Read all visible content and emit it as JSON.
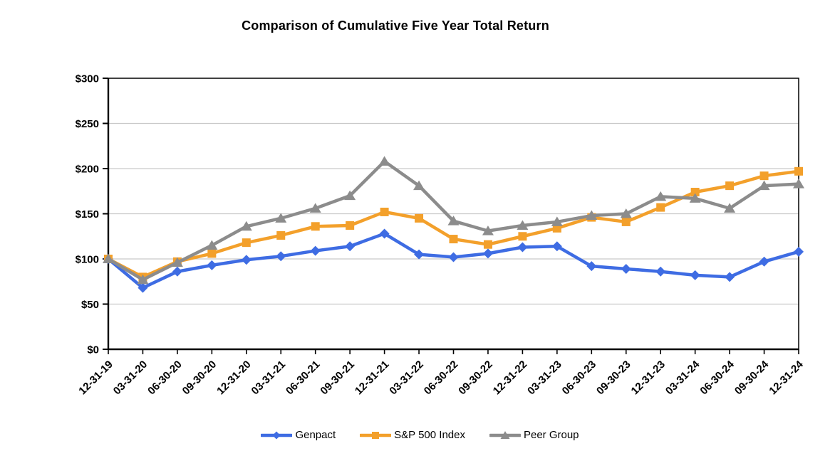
{
  "title": "Comparison of Cumulative Five Year Total Return",
  "chart_data": {
    "type": "line",
    "title": "Comparison of Cumulative Five Year Total Return",
    "x_labels": [
      "12-31-19",
      "03-31-20",
      "06-30-20",
      "09-30-20",
      "12-31-20",
      "03-31-21",
      "06-30-21",
      "09-30-21",
      "12-31-21",
      "03-31-22",
      "06-30-22",
      "09-30-22",
      "12-31-22",
      "03-31-23",
      "06-30-23",
      "09-30-23",
      "12-31-23",
      "03-31-24",
      "06-30-24",
      "09-30-24",
      "12-31-24"
    ],
    "series": [
      {
        "name": "Genpact",
        "color": "#3E6CE3",
        "marker": "diamond",
        "values": [
          100,
          68,
          86,
          93,
          99,
          103,
          109,
          114,
          128,
          105,
          102,
          106,
          113,
          114,
          92,
          89,
          86,
          82,
          80,
          97,
          108
        ]
      },
      {
        "name": "S&P 500 Index",
        "color": "#F3A02B",
        "marker": "square",
        "values": [
          100,
          80,
          97,
          106,
          118,
          126,
          136,
          137,
          152,
          145,
          122,
          116,
          125,
          134,
          146,
          141,
          157,
          174,
          181,
          192,
          197
        ]
      },
      {
        "name": "Peer Group",
        "color": "#8C8C8C",
        "marker": "triangle",
        "values": [
          100,
          77,
          96,
          115,
          136,
          145,
          156,
          170,
          208,
          181,
          142,
          131,
          137,
          141,
          148,
          150,
          169,
          167,
          156,
          181,
          183
        ]
      }
    ],
    "y_axis": {
      "min": 0,
      "max": 300,
      "step": 50,
      "tick_labels": [
        "$0",
        "$50",
        "$100",
        "$150",
        "$200",
        "$250",
        "$300"
      ]
    },
    "grid": true,
    "gridline_color": "#C9C9C9",
    "axis_color": "#000000",
    "legend_position": "bottom"
  }
}
